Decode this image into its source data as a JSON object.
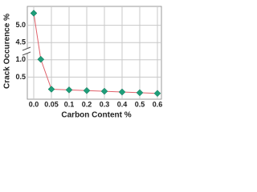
{
  "chart_data": {
    "type": "line",
    "x_label": "Carbon Content %",
    "y_label": "Crack Occurence %",
    "x": [
      0,
      0.02,
      0.05,
      0.1,
      0.2,
      0.3,
      0.4,
      0.5,
      0.6
    ],
    "series": [
      {
        "name": "Crack Occurence",
        "color": "#e0606a",
        "marker_color": "#1f9e7a",
        "values": [
          5.35,
          1.1,
          0.15,
          0.13,
          0.11,
          0.09,
          0.07,
          0.05,
          0.03
        ]
      }
    ],
    "xlim": [
      0,
      0.6
    ],
    "xticks": [
      {
        "value": 0,
        "label": "0.0"
      },
      0.05,
      0.1,
      0.2,
      0.3,
      0.4,
      0.5,
      0.6
    ],
    "ylim": [
      0,
      5.5
    ],
    "yticks": [
      0.5,
      {
        "value": 1,
        "label": "1.0"
      },
      4.5,
      {
        "value": 5,
        "label": "5.0"
      }
    ],
    "y_break": true,
    "grid": true
  }
}
